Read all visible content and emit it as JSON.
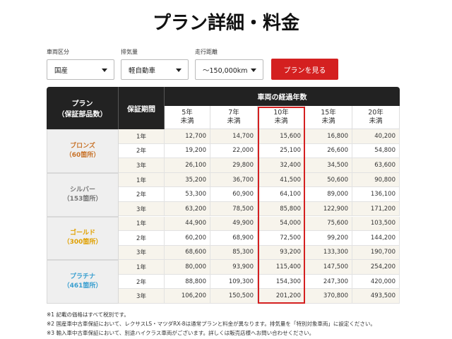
{
  "title": "プラン詳細・料金",
  "filters": [
    {
      "label": "車両区分",
      "value": "国産"
    },
    {
      "label": "排気量",
      "value": "軽自動車"
    },
    {
      "label": "走行距離",
      "value": "～150,000km"
    }
  ],
  "button": "プランを見る",
  "table": {
    "plan_header": [
      "プラン",
      "（保証部品数）"
    ],
    "period_header": "保証期間",
    "years_header": "車両の経過年数",
    "columns": [
      [
        "5年",
        "未満"
      ],
      [
        "7年",
        "未満"
      ],
      [
        "10年",
        "未満"
      ],
      [
        "15年",
        "未満"
      ],
      [
        "20年",
        "未満"
      ]
    ],
    "groups": [
      {
        "name": "ブロンズ",
        "count": "（60箇所）",
        "color": "#c8732a",
        "rows": [
          {
            "period": "1年",
            "prices": [
              "12,700",
              "14,700",
              "15,600",
              "16,800",
              "40,200"
            ]
          },
          {
            "period": "2年",
            "prices": [
              "19,200",
              "22,000",
              "25,100",
              "26,600",
              "54,800"
            ]
          },
          {
            "period": "3年",
            "prices": [
              "26,100",
              "29,800",
              "32,400",
              "34,500",
              "63,600"
            ]
          }
        ]
      },
      {
        "name": "シルバー",
        "count": "（153箇所）",
        "color": "#777777",
        "rows": [
          {
            "period": "1年",
            "prices": [
              "35,200",
              "36,700",
              "41,500",
              "50,600",
              "90,800"
            ]
          },
          {
            "period": "2年",
            "prices": [
              "53,300",
              "60,900",
              "64,100",
              "89,000",
              "136,100"
            ]
          },
          {
            "period": "3年",
            "prices": [
              "63,200",
              "78,500",
              "85,800",
              "122,900",
              "171,200"
            ]
          }
        ]
      },
      {
        "name": "ゴールド",
        "count": "（300箇所）",
        "color": "#e0a000",
        "rows": [
          {
            "period": "1年",
            "prices": [
              "44,900",
              "49,900",
              "54,000",
              "75,600",
              "103,500"
            ]
          },
          {
            "period": "2年",
            "prices": [
              "60,200",
              "68,900",
              "72,500",
              "99,200",
              "144,200"
            ]
          },
          {
            "period": "3年",
            "prices": [
              "68,600",
              "85,300",
              "93,200",
              "133,300",
              "190,700"
            ]
          }
        ]
      },
      {
        "name": "プラチナ",
        "count": "（461箇所）",
        "color": "#3a9fd0",
        "rows": [
          {
            "period": "1年",
            "prices": [
              "80,000",
              "93,900",
              "115,400",
              "147,500",
              "254,200"
            ]
          },
          {
            "period": "2年",
            "prices": [
              "88,800",
              "109,300",
              "154,300",
              "247,300",
              "420,000"
            ]
          },
          {
            "period": "3年",
            "prices": [
              "106,200",
              "150,500",
              "201,200",
              "370,800",
              "493,500"
            ]
          }
        ]
      }
    ]
  },
  "notes": [
    "※1 記載の価格はすべて税別です。",
    "※2 国産車中古車保証において、レクサスLS・マツダRX-8は通常プランと料金が異なります。排気量を「特別対象車両」に設定ください。",
    "※3 輸入車中古車保証において、別途ハイクラス車両がございます。詳しくは販売店様へお問い合わせください。"
  ]
}
